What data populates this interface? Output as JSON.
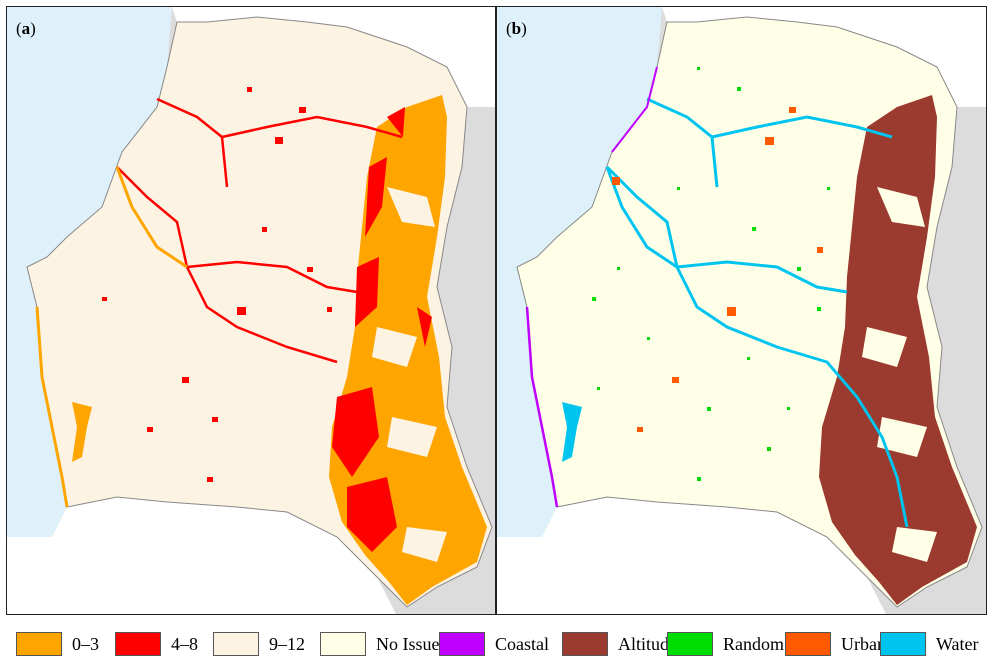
{
  "panels": [
    {
      "label_open": "(",
      "label_letter": "a",
      "label_close": ")"
    },
    {
      "label_open": "(",
      "label_letter": "b",
      "label_close": ")"
    }
  ],
  "legend_a": [
    {
      "label": "0–3",
      "color": "#ffa500"
    },
    {
      "label": "4–8",
      "color": "#ff0000"
    },
    {
      "label": "9–12",
      "color": "#fdf3e3"
    }
  ],
  "legend_b": [
    {
      "label": "No Issue",
      "color": "#ffffe8"
    },
    {
      "label": "Coastal",
      "color": "#c000ff"
    },
    {
      "label": "Altitude",
      "color": "#9b3a2e"
    },
    {
      "label": "Random",
      "color": "#00dd00"
    },
    {
      "label": "Urban",
      "color": "#ff5a00"
    },
    {
      "label": "Water",
      "color": "#00c4f0"
    }
  ],
  "colors": {
    "sea": "#def0fa",
    "outside_land": "#ffffff",
    "neighbor_gray": "#dcdcdc",
    "border": "#888888"
  }
}
